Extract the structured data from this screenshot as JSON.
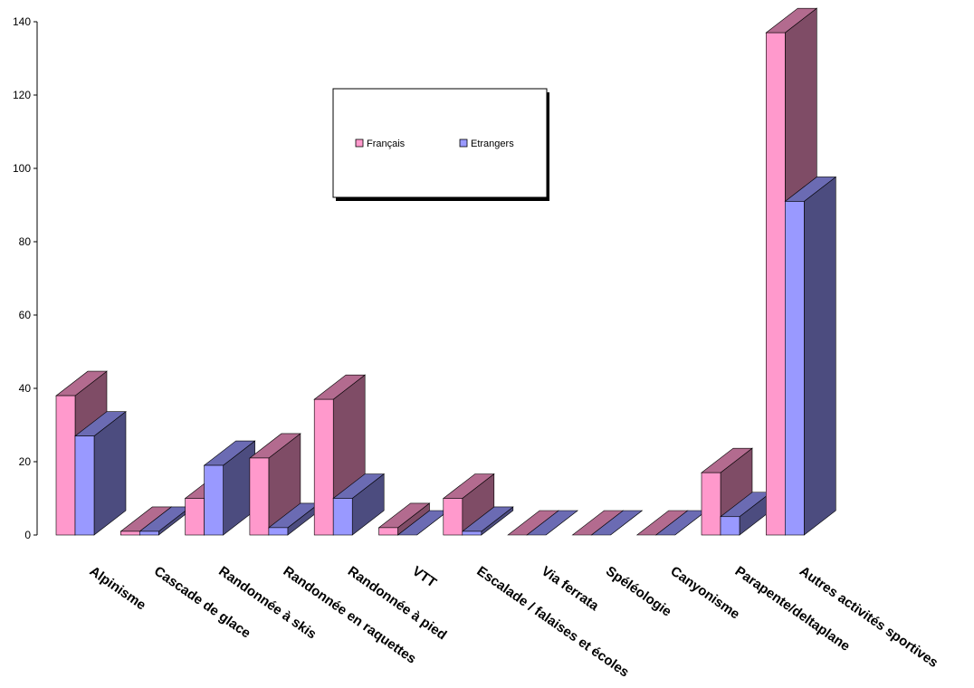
{
  "chart_data": {
    "type": "bar",
    "title": "",
    "xlabel": "",
    "ylabel": "",
    "ylim": [
      0,
      140
    ],
    "yticks": [
      0,
      20,
      40,
      60,
      80,
      100,
      120,
      140
    ],
    "categories": [
      "Alpinisme",
      "Cascade de glace",
      "Randonnée à skis",
      "Randonnée en raquettes",
      "Randonnée à pied",
      "VTT",
      "Escalade / falaises et écoles",
      "Via ferrata",
      "Spéléologie",
      "Canyonisme",
      "Parapente/deltaplane",
      "Autres activités sportives"
    ],
    "series": [
      {
        "name": "Français",
        "values": [
          38,
          1,
          10,
          21,
          37,
          2,
          10,
          0,
          0,
          0,
          17,
          137
        ],
        "front": "#ff99cc",
        "side": "#7f4c66",
        "top": "#b36b8f"
      },
      {
        "name": "Etrangers",
        "values": [
          27,
          1,
          19,
          2,
          10,
          0,
          1,
          0,
          0,
          0,
          5,
          91
        ],
        "front": "#9999ff",
        "side": "#4c4c7f",
        "top": "#6b6bb3"
      }
    ],
    "legend": "top-center",
    "grid": false,
    "three_d": true
  }
}
